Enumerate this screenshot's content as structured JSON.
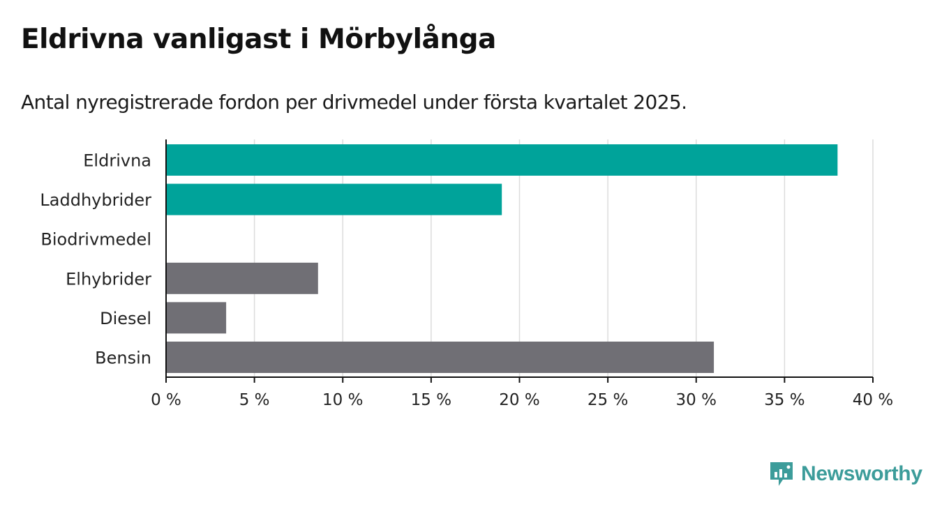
{
  "title": "Eldrivna vanligast i Mörbylånga",
  "subtitle": "Antal nyregistrerade fordon per drivmedel under första kvartalet 2025.",
  "brand": {
    "name": "Newsworthy",
    "icon": "bar-chart-icon",
    "color": "#3c9c9a"
  },
  "chart_data": {
    "type": "bar",
    "orientation": "horizontal",
    "categories": [
      "Eldrivna",
      "Laddhybrider",
      "Biodrivmedel",
      "Elhybrider",
      "Diesel",
      "Bensin"
    ],
    "values": [
      38,
      19,
      0,
      8.6,
      3.4,
      31
    ],
    "colors": [
      "#00a39a",
      "#00a39a",
      "#00a39a",
      "#706f75",
      "#706f75",
      "#706f75"
    ],
    "xlim": [
      0,
      40
    ],
    "xticks": [
      0,
      5,
      10,
      15,
      20,
      25,
      30,
      35,
      40
    ],
    "tick_labels": [
      "0 %",
      "5 %",
      "10 %",
      "15 %",
      "20 %",
      "25 %",
      "30 %",
      "35 %",
      "40 %"
    ],
    "grid": true,
    "legend": "none"
  }
}
